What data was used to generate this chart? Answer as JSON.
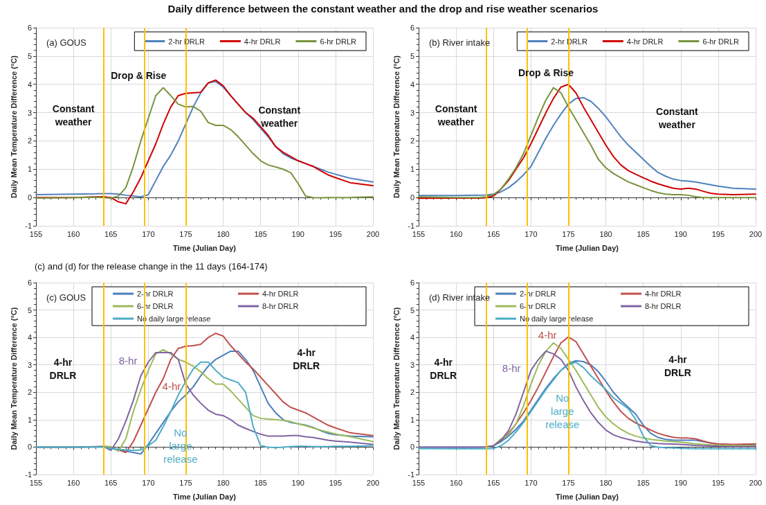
{
  "chart_data": [
    {
      "type": "line",
      "title": "(a) GOUS",
      "xlabel": "Time (Julian Day)",
      "ylabel": "Daily Mean Temperature Difference (°C)",
      "annotations": [
        "Daily difference between the constant weather and the drop and rise weather scenarios",
        "Drop & Rise",
        "Constant\nweather",
        "Constant\nweather"
      ],
      "x": [
        155,
        160,
        163,
        164,
        165,
        166,
        167,
        168,
        169,
        170,
        171,
        172,
        173,
        174,
        175,
        176,
        177,
        178,
        179,
        180,
        181,
        182,
        183,
        184,
        185,
        186,
        187,
        188,
        189,
        190,
        191,
        192,
        193,
        194,
        195,
        197,
        200
      ],
      "series": [
        {
          "name": "2-hr DRLR",
          "color": "#4f81bd",
          "values": [
            0.1,
            0.12,
            0.13,
            0.14,
            0.14,
            0.12,
            0.08,
            0.05,
            0.02,
            0.1,
            0.6,
            1.1,
            1.5,
            2.0,
            2.6,
            3.2,
            3.7,
            4.05,
            4.1,
            3.9,
            3.6,
            3.3,
            3.0,
            2.75,
            2.45,
            2.15,
            1.8,
            1.55,
            1.4,
            1.3,
            1.2,
            1.1,
            1.0,
            0.9,
            0.82,
            0.68,
            0.55
          ]
        },
        {
          "name": "4-hr DRLR",
          "color": "#d00000",
          "values": [
            0,
            0,
            0.02,
            0.03,
            0,
            -0.15,
            -0.22,
            0.2,
            0.7,
            1.3,
            1.9,
            2.6,
            3.2,
            3.6,
            3.68,
            3.7,
            3.72,
            4.05,
            4.15,
            3.95,
            3.6,
            3.3,
            3.0,
            2.8,
            2.5,
            2.2,
            1.8,
            1.6,
            1.45,
            1.3,
            1.2,
            1.1,
            0.95,
            0.8,
            0.7,
            0.52,
            0.42
          ]
        },
        {
          "name": "6-hr DRLR",
          "color": "#77933c",
          "values": [
            -0.02,
            0,
            0.01,
            0,
            -0.02,
            0.05,
            0.35,
            1.1,
            2.0,
            2.8,
            3.6,
            3.88,
            3.6,
            3.3,
            3.2,
            3.22,
            3.05,
            2.65,
            2.55,
            2.55,
            2.4,
            2.15,
            1.85,
            1.55,
            1.3,
            1.15,
            1.08,
            1.0,
            0.88,
            0.5,
            0.05,
            0,
            -0.01,
            0,
            0,
            0,
            0.02
          ]
        }
      ],
      "ref_lines": [
        {
          "axis": "x",
          "value": 164,
          "color": "#ffc000"
        },
        {
          "axis": "x",
          "value": 169.5,
          "color": "#ffc000"
        },
        {
          "axis": "x",
          "value": 175,
          "color": "#ffc000"
        }
      ],
      "xlim": [
        155,
        200
      ],
      "xticks": [
        155,
        160,
        165,
        170,
        175,
        180,
        185,
        190,
        195,
        200
      ],
      "ylim": [
        -1,
        6
      ],
      "yticks": [
        -1,
        0,
        1,
        2,
        3,
        4,
        5,
        6
      ],
      "grid": true,
      "legend": "top right"
    },
    {
      "type": "line",
      "title": "(b) River intake",
      "xlabel": "Time (Julian Day)",
      "ylabel": "Daily Mean Temperature Difference (°C)",
      "annotations": [
        "Drop & Rise",
        "Constant\nweather",
        "Constant\nweather"
      ],
      "x": [
        155,
        160,
        163,
        164,
        165,
        166,
        167,
        168,
        169,
        170,
        171,
        172,
        173,
        174,
        175,
        176,
        177,
        178,
        179,
        180,
        181,
        182,
        183,
        184,
        185,
        186,
        187,
        188,
        189,
        190,
        191,
        192,
        193,
        194,
        195,
        197,
        200
      ],
      "series": [
        {
          "name": "2-hr DRLR",
          "color": "#4f81bd",
          "values": [
            0.07,
            0.07,
            0.08,
            0.09,
            0.12,
            0.2,
            0.35,
            0.55,
            0.8,
            1.1,
            1.6,
            2.1,
            2.55,
            2.95,
            3.3,
            3.5,
            3.53,
            3.4,
            3.15,
            2.85,
            2.5,
            2.15,
            1.85,
            1.6,
            1.35,
            1.1,
            0.88,
            0.75,
            0.65,
            0.6,
            0.58,
            0.55,
            0.5,
            0.45,
            0.4,
            0.33,
            0.3
          ]
        },
        {
          "name": "4-hr DRLR",
          "color": "#d00000",
          "values": [
            -0.03,
            -0.02,
            -0.02,
            -0.01,
            0.05,
            0.3,
            0.6,
            1.0,
            1.4,
            1.9,
            2.45,
            3.0,
            3.5,
            3.9,
            4.0,
            3.7,
            3.2,
            2.75,
            2.3,
            1.85,
            1.45,
            1.15,
            0.95,
            0.82,
            0.7,
            0.58,
            0.48,
            0.4,
            0.33,
            0.3,
            0.33,
            0.3,
            0.22,
            0.15,
            0.12,
            0.1,
            0.12
          ]
        },
        {
          "name": "6-hr DRLR",
          "color": "#77933c",
          "values": [
            0.02,
            0,
            0,
            0.02,
            0.1,
            0.3,
            0.65,
            1.05,
            1.55,
            2.2,
            2.85,
            3.45,
            3.88,
            3.7,
            3.2,
            2.75,
            2.3,
            1.85,
            1.35,
            1.05,
            0.85,
            0.7,
            0.55,
            0.45,
            0.35,
            0.25,
            0.17,
            0.12,
            0.1,
            0.1,
            0.08,
            0.03,
            0,
            0,
            0,
            0,
            0
          ]
        }
      ],
      "ref_lines": [
        {
          "axis": "x",
          "value": 164,
          "color": "#ffc000"
        },
        {
          "axis": "x",
          "value": 169.5,
          "color": "#ffc000"
        },
        {
          "axis": "x",
          "value": 175,
          "color": "#ffc000"
        }
      ],
      "xlim": [
        155,
        200
      ],
      "xticks": [
        155,
        160,
        165,
        170,
        175,
        180,
        185,
        190,
        195,
        200
      ],
      "ylim": [
        -1,
        6
      ],
      "yticks": [
        -1,
        0,
        1,
        2,
        3,
        4,
        5,
        6
      ],
      "grid": true,
      "legend": "top right"
    },
    {
      "type": "line",
      "title": "(c) GOUS",
      "xlabel": "Time (Julian Day)",
      "ylabel": "Daily Mean Temperature Difference (°C)",
      "annotations": [
        "(c) and (d) for the release change in the 11 days (164-174)",
        "4-hr\nDRLR",
        "4-hr\nDRLR",
        "8-hr",
        "4-hr",
        "No\nlarge\nrelease"
      ],
      "x": [
        155,
        160,
        163,
        164,
        165,
        166,
        167,
        168,
        169,
        170,
        171,
        172,
        173,
        174,
        175,
        176,
        177,
        178,
        179,
        180,
        181,
        182,
        183,
        184,
        185,
        186,
        187,
        188,
        189,
        190,
        191,
        192,
        193,
        194,
        195,
        197,
        200
      ],
      "series": [
        {
          "name": "2-hr DRLR",
          "color": "#4a7ebb",
          "values": [
            0,
            0,
            0.02,
            0.02,
            -0.05,
            -0.1,
            -0.15,
            -0.2,
            -0.25,
            0.1,
            0.5,
            0.9,
            1.3,
            1.65,
            1.9,
            2.2,
            2.6,
            2.95,
            3.2,
            3.35,
            3.5,
            3.5,
            3.2,
            2.8,
            2.2,
            1.6,
            1.25,
            1.0,
            0.9,
            0.85,
            0.8,
            0.72,
            0.6,
            0.5,
            0.45,
            0.4,
            0.38
          ]
        },
        {
          "name": "4-hr DRLR",
          "color": "#c0504d",
          "values": [
            null,
            null,
            null,
            0.03,
            0,
            -0.1,
            -0.2,
            0.2,
            0.8,
            1.4,
            2.0,
            2.5,
            3.2,
            3.6,
            3.68,
            3.7,
            3.75,
            4.0,
            4.15,
            4.05,
            3.7,
            3.4,
            3.1,
            2.85,
            2.55,
            2.25,
            1.95,
            1.65,
            1.45,
            1.35,
            1.25,
            1.1,
            0.95,
            0.8,
            0.7,
            0.52,
            0.42
          ]
        },
        {
          "name": "6-hr DRLR",
          "color": "#9bbb59",
          "values": [
            0,
            0,
            0.01,
            0.03,
            0.02,
            -0.15,
            0.3,
            1.3,
            2.1,
            2.8,
            3.4,
            3.55,
            3.4,
            3.2,
            3.1,
            2.95,
            2.75,
            2.5,
            2.3,
            2.3,
            2.05,
            1.75,
            1.45,
            1.15,
            1.05,
            1.02,
            1.0,
            0.97,
            0.93,
            0.85,
            0.78,
            0.7,
            0.62,
            0.55,
            0.48,
            0.38,
            0.2
          ]
        },
        {
          "name": "8-hr DRLR",
          "color": "#8064a2",
          "values": [
            0,
            0,
            0.01,
            0.02,
            -0.12,
            0.3,
            0.95,
            1.7,
            2.6,
            3.1,
            3.45,
            3.45,
            3.45,
            3.2,
            2.3,
            1.9,
            1.6,
            1.35,
            1.2,
            1.15,
            1.0,
            0.8,
            0.68,
            0.57,
            0.47,
            0.4,
            0.4,
            0.4,
            0.42,
            0.42,
            0.38,
            0.35,
            0.3,
            0.25,
            0.22,
            0.18,
            0.1
          ]
        },
        {
          "name": "No daily large release",
          "color": "#4bacc6",
          "values": [
            0,
            0,
            0,
            0,
            -0.05,
            -0.08,
            -0.1,
            -0.12,
            -0.1,
            0.05,
            0.25,
            0.75,
            1.3,
            1.9,
            2.4,
            2.85,
            3.1,
            3.1,
            2.8,
            2.55,
            2.45,
            2.35,
            2.0,
            0.75,
            0.05,
            0,
            -0.02,
            0,
            0.02,
            0.03,
            0.03,
            0.02,
            0.02,
            0.02,
            0.03,
            0.03,
            0.05
          ]
        }
      ],
      "ref_lines": [
        {
          "axis": "x",
          "value": 164,
          "color": "#ffc000"
        },
        {
          "axis": "x",
          "value": 169.5,
          "color": "#ffc000"
        },
        {
          "axis": "x",
          "value": 175,
          "color": "#ffc000"
        }
      ],
      "xlim": [
        155,
        200
      ],
      "xticks": [
        155,
        160,
        165,
        170,
        175,
        180,
        185,
        190,
        195,
        200
      ],
      "ylim": [
        -1,
        6
      ],
      "yticks": [
        -1,
        0,
        1,
        2,
        3,
        4,
        5,
        6
      ],
      "grid": true,
      "legend": "top right"
    },
    {
      "type": "line",
      "title": "(d) River intake",
      "xlabel": "Time (Julian Day)",
      "ylabel": "Daily Mean Temperature Difference (°C)",
      "annotations": [
        "4-hr\nDRLR",
        "4-hr\nDRLR",
        "8-hr",
        "4-hr",
        "No\nlarge\nrelease"
      ],
      "x": [
        155,
        160,
        163,
        164,
        165,
        166,
        167,
        168,
        169,
        170,
        171,
        172,
        173,
        174,
        175,
        176,
        177,
        178,
        179,
        180,
        181,
        182,
        183,
        184,
        185,
        186,
        187,
        188,
        189,
        190,
        191,
        192,
        193,
        194,
        195,
        197,
        200
      ],
      "series": [
        {
          "name": "2-hr DRLR",
          "color": "#4a7ebb",
          "values": [
            0,
            0,
            0,
            0,
            0.05,
            0.2,
            0.4,
            0.65,
            0.95,
            1.35,
            1.75,
            2.15,
            2.5,
            2.8,
            3.05,
            3.15,
            3.12,
            3.0,
            2.75,
            2.4,
            2.0,
            1.7,
            1.45,
            1.2,
            0.8,
            0.5,
            0.35,
            0.28,
            0.25,
            0.25,
            0.25,
            0.25,
            0.2,
            0.15,
            0.1,
            0.08,
            0.08
          ]
        },
        {
          "name": "4-hr DRLR",
          "color": "#c0504d",
          "values": [
            null,
            null,
            null,
            null,
            0.05,
            0.25,
            0.5,
            0.85,
            1.25,
            1.7,
            2.2,
            2.75,
            3.3,
            3.8,
            4.02,
            3.85,
            3.4,
            2.95,
            2.5,
            2.05,
            1.65,
            1.3,
            1.05,
            0.88,
            0.75,
            0.62,
            0.5,
            0.42,
            0.36,
            0.33,
            0.33,
            0.3,
            0.22,
            0.15,
            0.12,
            0.1,
            0.12
          ]
        },
        {
          "name": "6-hr DRLR",
          "color": "#9bbb59",
          "values": [
            null,
            null,
            null,
            0,
            0.05,
            0.3,
            0.45,
            0.85,
            1.5,
            2.3,
            3.0,
            3.5,
            3.8,
            3.6,
            3.2,
            2.8,
            2.35,
            1.9,
            1.45,
            1.1,
            0.85,
            0.65,
            0.5,
            0.4,
            0.33,
            0.28,
            0.25,
            0.22,
            0.2,
            0.18,
            0.15,
            0.12,
            0.1,
            0.08,
            0.07,
            0.06,
            0.05
          ]
        },
        {
          "name": "8-hr DRLR",
          "color": "#8064a2",
          "values": [
            0,
            0,
            0,
            0.01,
            0.05,
            0.25,
            0.6,
            1.2,
            2.0,
            2.8,
            3.2,
            3.5,
            3.4,
            3.2,
            2.8,
            2.2,
            1.7,
            1.25,
            0.9,
            0.62,
            0.45,
            0.35,
            0.28,
            0.22,
            0.18,
            0.15,
            0.13,
            0.12,
            0.11,
            0.1,
            0.08,
            0.06,
            0.05,
            0.04,
            0.03,
            0.02,
            0.02
          ]
        },
        {
          "name": "No daily large release",
          "color": "#4bacc6",
          "values": [
            -0.05,
            -0.06,
            -0.06,
            -0.06,
            -0.05,
            0.05,
            0.25,
            0.55,
            0.9,
            1.3,
            1.7,
            2.1,
            2.45,
            2.8,
            3.0,
            3.1,
            2.9,
            2.6,
            2.35,
            2.1,
            1.8,
            1.6,
            1.4,
            1.0,
            0.4,
            0.05,
            0,
            -0.02,
            -0.03,
            -0.04,
            -0.05,
            -0.06,
            -0.06,
            -0.06,
            -0.06,
            -0.06,
            -0.06
          ]
        }
      ],
      "ref_lines": [
        {
          "axis": "x",
          "value": 164,
          "color": "#ffc000"
        },
        {
          "axis": "x",
          "value": 169.5,
          "color": "#ffc000"
        },
        {
          "axis": "x",
          "value": 175,
          "color": "#ffc000"
        }
      ],
      "xlim": [
        155,
        200
      ],
      "xticks": [
        155,
        160,
        165,
        170,
        175,
        180,
        185,
        190,
        195,
        200
      ],
      "ylim": [
        -1,
        6
      ],
      "yticks": [
        -1,
        0,
        1,
        2,
        3,
        4,
        5,
        6
      ],
      "grid": true,
      "legend": "top right"
    }
  ]
}
